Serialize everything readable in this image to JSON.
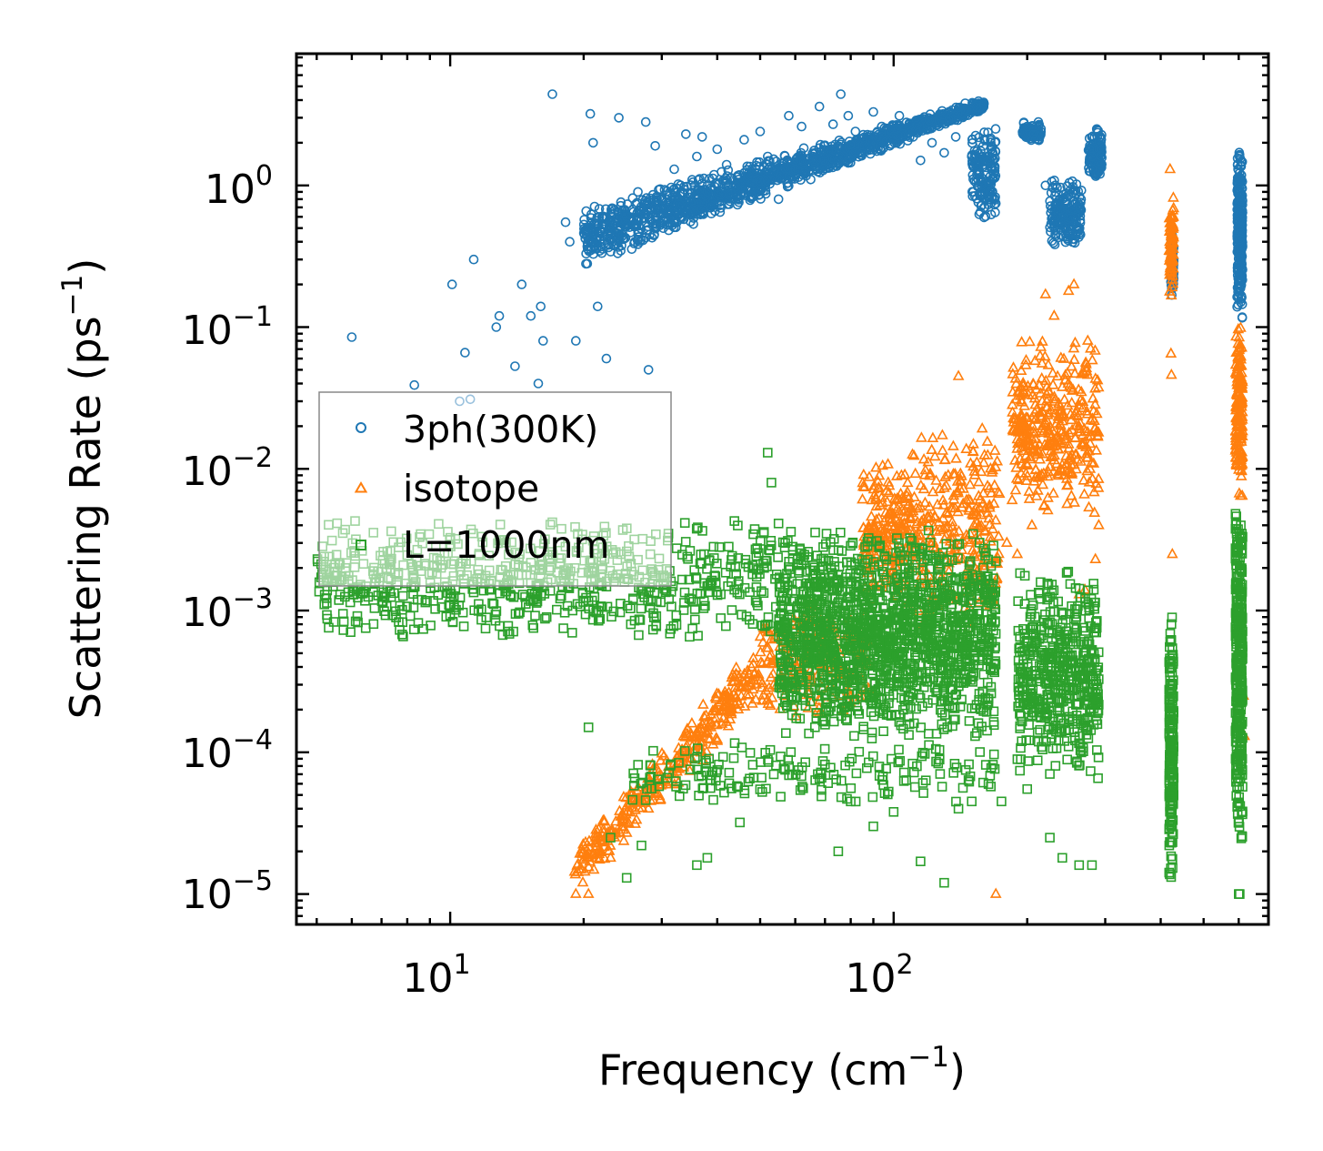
{
  "chart_data": {
    "type": "scatter",
    "xscale": "log",
    "yscale": "log",
    "xlim": [
      4.5,
      700
    ],
    "ylim": [
      6.1e-06,
      8.5
    ],
    "xlabel": "Frequency (cm",
    "xlabel_sup": "−1",
    "xlabel_end": ")",
    "ylabel": "Scattering Rate (ps",
    "ylabel_sup": "−1",
    "ylabel_end": ")",
    "x_ticks": [
      {
        "value": 10,
        "base": "10",
        "exp": "1"
      },
      {
        "value": 100,
        "base": "10",
        "exp": "2"
      }
    ],
    "y_ticks": [
      {
        "value": 1,
        "base": "10",
        "exp": "0"
      },
      {
        "value": 0.1,
        "base": "10",
        "exp": "−1"
      },
      {
        "value": 0.01,
        "base": "10",
        "exp": "−2"
      },
      {
        "value": 0.001,
        "base": "10",
        "exp": "−3"
      },
      {
        "value": 0.0001,
        "base": "10",
        "exp": "−4"
      },
      {
        "value": 1e-05,
        "base": "10",
        "exp": "−5"
      }
    ],
    "legend_position": "center-left",
    "series": [
      {
        "name": "3ph(300K)",
        "marker": "circle",
        "color": "#1f77b4",
        "points": [
          [
            6,
            0.085
          ],
          [
            8.3,
            0.039
          ],
          [
            10.5,
            0.03
          ],
          [
            10.8,
            0.066
          ],
          [
            11.1,
            0.031
          ],
          [
            11.3,
            0.3
          ],
          [
            10.1,
            0.2
          ],
          [
            12.7,
            0.1
          ],
          [
            12.9,
            0.12
          ],
          [
            14,
            0.053
          ],
          [
            14.5,
            0.2
          ],
          [
            15.2,
            0.12
          ],
          [
            15.8,
            0.04
          ],
          [
            16,
            0.14
          ],
          [
            16.2,
            0.08
          ],
          [
            17,
            4.4
          ],
          [
            18.2,
            0.55
          ],
          [
            18.6,
            0.4
          ],
          [
            19.2,
            0.08
          ],
          [
            20.7,
            3.2
          ],
          [
            21,
            2
          ],
          [
            21.5,
            0.14
          ],
          [
            22,
            0.6
          ],
          [
            22.5,
            0.06
          ],
          [
            24,
            3
          ],
          [
            25,
            0.6
          ],
          [
            26.5,
            0.9
          ],
          [
            27.6,
            2.8
          ],
          [
            28,
            0.05
          ],
          [
            29,
            1.9
          ],
          [
            30,
            0.8
          ],
          [
            32,
            1.3
          ],
          [
            33,
            0.6
          ],
          [
            34,
            2.3
          ],
          [
            36,
            1.6
          ],
          [
            37,
            2.2
          ],
          [
            38,
            0.9
          ],
          [
            40,
            1.8
          ],
          [
            42,
            1.4
          ],
          [
            44,
            0.9
          ],
          [
            46,
            2.1
          ],
          [
            48,
            1.2
          ],
          [
            50,
            2.4
          ],
          [
            52,
            1.6
          ],
          [
            55,
            0.8
          ],
          [
            58,
            3.1
          ],
          [
            60,
            1.3
          ],
          [
            62,
            2.6
          ],
          [
            65,
            1.1
          ],
          [
            68,
            3.6
          ],
          [
            70,
            1.9
          ],
          [
            73,
            2.7
          ],
          [
            76,
            4.4
          ],
          [
            79,
            3.1
          ],
          [
            82,
            2.4
          ],
          [
            85,
            1.7
          ],
          [
            90,
            3.3
          ],
          [
            94,
            2.6
          ],
          [
            98,
            1.9
          ],
          [
            103,
            3.1
          ],
          [
            108,
            2.3
          ],
          [
            115,
            1.5
          ],
          [
            122,
            2
          ],
          [
            130,
            1.7
          ],
          [
            138,
            2.2
          ],
          [
            145,
            3.8
          ],
          [
            150,
            1.6
          ],
          [
            155,
            1.1
          ],
          [
            160,
            0.7
          ],
          [
            165,
            0.9
          ],
          [
            200,
            2.6
          ],
          [
            207,
            2.3
          ],
          [
            212,
            2.8
          ],
          [
            220,
            1
          ],
          [
            232,
            0.6
          ],
          [
            240,
            0.8
          ],
          [
            250,
            0.45
          ],
          [
            258,
            0.55
          ],
          [
            263,
            0.7
          ],
          [
            280,
            1.6
          ],
          [
            287,
            2.5
          ],
          [
            292,
            1.3
          ]
        ],
        "clusters": [
          {
            "x": [
              20,
              160
            ],
            "y_low": "0.25*(x/20)^1.25",
            "y_high": "0.7*(x/20)^0.85",
            "density": 1400
          },
          {
            "x": [
              150,
              170
            ],
            "y": [
              0.55,
              2.7
            ],
            "density": 160
          },
          {
            "x": [
              195,
              215
            ],
            "y": [
              2.0,
              2.8
            ],
            "density": 90
          },
          {
            "x": [
              225,
              265
            ],
            "y": [
              0.35,
              1.1
            ],
            "density": 180
          },
          {
            "x": [
              275,
              295
            ],
            "y": [
              1.1,
              2.6
            ],
            "density": 120
          },
          {
            "x": [
              422,
              428
            ],
            "y": [
              0.16,
              0.45
            ],
            "density": 60
          },
          {
            "x": [
              595,
              612
            ],
            "y": [
              0.11,
              1.9
            ],
            "density": 260
          }
        ]
      },
      {
        "name": "isotope",
        "marker": "triangle",
        "color": "#ff7f0e",
        "points": [
          [
            19.2,
            1e-05
          ],
          [
            20.5,
            1e-05
          ],
          [
            23,
            1.8e-05
          ],
          [
            25,
            2.7e-05
          ],
          [
            28,
            4e-05
          ],
          [
            32,
            7e-05
          ],
          [
            40,
            0.00012
          ],
          [
            48,
            0.00022
          ],
          [
            58,
            0.00035
          ],
          [
            140,
            0.045
          ],
          [
            170,
            1e-05
          ],
          [
            180,
            0.003
          ],
          [
            185,
            0.006
          ],
          [
            190,
            0.0025
          ],
          [
            205,
            0.004
          ],
          [
            213,
            0.009
          ],
          [
            220,
            0.17
          ],
          [
            230,
            0.12
          ],
          [
            242,
            0.009
          ],
          [
            248,
            0.18
          ],
          [
            255,
            0.2
          ],
          [
            262,
            0.0013
          ],
          [
            270,
            0.0014
          ],
          [
            285,
            0.0023
          ],
          [
            290,
            0.004
          ],
          [
            420,
            1.3
          ],
          [
            422,
            0.065
          ],
          [
            423,
            0.046
          ],
          [
            425,
            0.0025
          ],
          [
            615,
            0.00025
          ],
          [
            618,
            0.00013
          ]
        ],
        "clusters": [
          {
            "x": [
              19,
              50
            ],
            "y_low": "0.00001*(x/19)^3.2",
            "y_high": "0.00002*(x/19)^3.6",
            "density": 350
          },
          {
            "x": [
              50,
              88
            ],
            "y": [
              0.00015,
              0.0012
            ],
            "density": 220
          },
          {
            "x": [
              85,
              110
            ],
            "y": [
              0.001,
              0.012
            ],
            "density": 220
          },
          {
            "x": [
              110,
              175
            ],
            "y": [
              0.0007,
              0.02
            ],
            "density": 280
          },
          {
            "x": [
              185,
              290
            ],
            "y": [
              0.004,
              0.09
            ],
            "density": 380
          },
          {
            "x": [
              418,
              428
            ],
            "y": [
              0.15,
              1.0
            ],
            "density": 80
          },
          {
            "x": [
              590,
              612
            ],
            "y": [
              0.006,
              0.11
            ],
            "density": 160
          }
        ]
      },
      {
        "name": "L=1000nm",
        "marker": "square",
        "color": "#2ca02c",
        "points": [
          [
            5.2,
            0.0024
          ],
          [
            5.8,
            0.002
          ],
          [
            15.5,
            0.0013
          ],
          [
            16.5,
            0.0009
          ],
          [
            17,
            0.0042
          ],
          [
            18,
            0.00075
          ],
          [
            20.5,
            0.00015
          ],
          [
            23,
            2.5e-05
          ],
          [
            25,
            1.3e-05
          ],
          [
            27,
            2.2e-05
          ],
          [
            36,
            1.6e-05
          ],
          [
            38,
            1.8e-05
          ],
          [
            45,
            3.2e-05
          ],
          [
            52,
            0.013
          ],
          [
            53,
            0.008
          ],
          [
            68,
            6.5e-05
          ],
          [
            75,
            2e-05
          ],
          [
            80,
            4.5e-05
          ],
          [
            90,
            3e-05
          ],
          [
            100,
            3.8e-05
          ],
          [
            115,
            1.7e-05
          ],
          [
            130,
            1.2e-05
          ],
          [
            140,
            4e-05
          ],
          [
            150,
            4.5e-05
          ],
          [
            175,
            4.5e-05
          ],
          [
            200,
            5.5e-05
          ],
          [
            225,
            2.5e-05
          ],
          [
            240,
            1.8e-05
          ],
          [
            262,
            1.6e-05
          ],
          [
            280,
            1.6e-05
          ],
          [
            600,
            1e-05
          ],
          [
            603,
            1e-05
          ]
        ],
        "clusters": [
          {
            "x": [
              5,
              55
            ],
            "y": [
              0.0006,
              0.0045
            ],
            "density": 700
          },
          {
            "x": [
              55,
              170
            ],
            "y": [
              0.00012,
              0.004
            ],
            "density": 1600
          },
          {
            "x": [
              25,
              170
            ],
            "y": [
              4e-05,
              0.00012
            ],
            "density": 180
          },
          {
            "x": [
              190,
              290
            ],
            "y": [
              6e-05,
              0.002
            ],
            "density": 520
          },
          {
            "x": [
              418,
              428
            ],
            "y": [
              1.1e-05,
              0.001
            ],
            "density": 200
          },
          {
            "x": [
              590,
              612
            ],
            "y": [
              2e-05,
              0.009
            ],
            "density": 320
          }
        ]
      }
    ]
  }
}
